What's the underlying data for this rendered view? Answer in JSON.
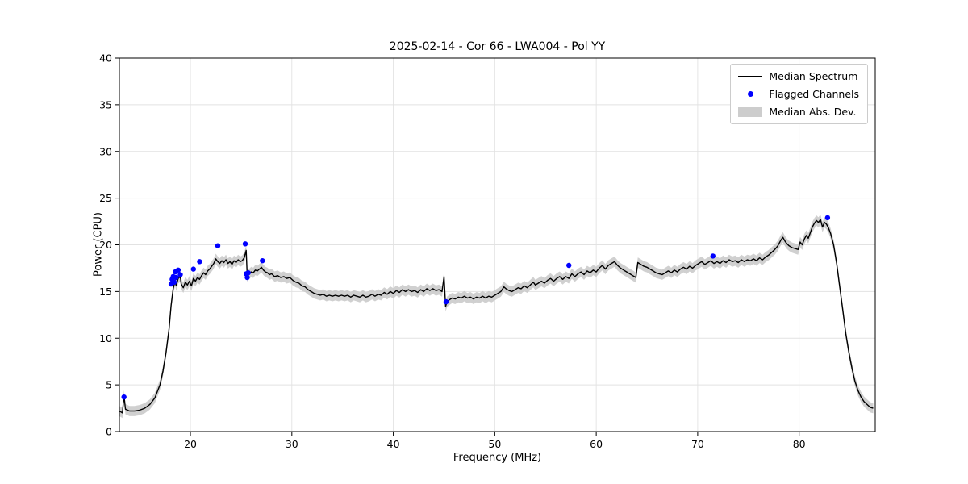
{
  "chart_data": {
    "type": "line",
    "title": "2025-02-14 - Cor 66 - LWA004 - Pol YY",
    "xlabel": "Frequency (MHz)",
    "ylabel": "Power (CPU)",
    "xlim": [
      13,
      87.5
    ],
    "ylim": [
      0,
      40
    ],
    "xticks": [
      20,
      30,
      40,
      50,
      60,
      70,
      80
    ],
    "yticks": [
      0,
      5,
      10,
      15,
      20,
      25,
      30,
      35,
      40
    ],
    "grid": true,
    "legend_position": "upper right",
    "line_color": "#000000",
    "flag_color": "#0000ff",
    "band_color": "#c8c8c8",
    "mad_halfwidth": 0.55,
    "legend": [
      {
        "label": "Median Spectrum",
        "type": "line"
      },
      {
        "label": "Flagged Channels",
        "type": "dot"
      },
      {
        "label": "Median Abs. Dev.",
        "type": "band"
      }
    ],
    "median_spectrum": [
      [
        13.0,
        2.2
      ],
      [
        13.3,
        2.0
      ],
      [
        13.45,
        3.9
      ],
      [
        13.6,
        2.4
      ],
      [
        14.0,
        2.2
      ],
      [
        14.5,
        2.2
      ],
      [
        15.0,
        2.3
      ],
      [
        15.5,
        2.5
      ],
      [
        16.0,
        2.9
      ],
      [
        16.5,
        3.6
      ],
      [
        17.0,
        5.0
      ],
      [
        17.3,
        6.5
      ],
      [
        17.6,
        8.5
      ],
      [
        17.9,
        11.0
      ],
      [
        18.1,
        13.5
      ],
      [
        18.3,
        15.3
      ],
      [
        18.5,
        16.2
      ],
      [
        18.6,
        15.6
      ],
      [
        18.8,
        16.4
      ],
      [
        19.0,
        16.6
      ],
      [
        19.1,
        15.8
      ],
      [
        19.3,
        15.4
      ],
      [
        19.5,
        16.0
      ],
      [
        19.7,
        15.7
      ],
      [
        19.9,
        16.1
      ],
      [
        20.1,
        15.6
      ],
      [
        20.3,
        16.4
      ],
      [
        20.5,
        16.1
      ],
      [
        20.7,
        16.5
      ],
      [
        20.9,
        16.3
      ],
      [
        21.1,
        16.7
      ],
      [
        21.3,
        17.0
      ],
      [
        21.5,
        16.8
      ],
      [
        21.7,
        17.2
      ],
      [
        21.9,
        17.4
      ],
      [
        22.1,
        17.7
      ],
      [
        22.3,
        18.0
      ],
      [
        22.5,
        18.5
      ],
      [
        22.7,
        18.2
      ],
      [
        22.9,
        18.0
      ],
      [
        23.1,
        18.3
      ],
      [
        23.3,
        18.1
      ],
      [
        23.5,
        18.4
      ],
      [
        23.7,
        18.0
      ],
      [
        23.9,
        18.2
      ],
      [
        24.1,
        17.9
      ],
      [
        24.3,
        18.3
      ],
      [
        24.5,
        18.1
      ],
      [
        24.7,
        18.4
      ],
      [
        24.9,
        18.2
      ],
      [
        25.1,
        18.3
      ],
      [
        25.3,
        18.6
      ],
      [
        25.5,
        19.4
      ],
      [
        25.6,
        16.6
      ],
      [
        25.8,
        16.9
      ],
      [
        26.0,
        17.1
      ],
      [
        26.2,
        17.0
      ],
      [
        26.4,
        17.3
      ],
      [
        26.6,
        17.2
      ],
      [
        26.8,
        17.4
      ],
      [
        27.0,
        17.6
      ],
      [
        27.2,
        17.3
      ],
      [
        27.4,
        17.1
      ],
      [
        27.6,
        17.0
      ],
      [
        27.8,
        16.8
      ],
      [
        28.0,
        16.9
      ],
      [
        28.3,
        16.6
      ],
      [
        28.6,
        16.7
      ],
      [
        28.9,
        16.5
      ],
      [
        29.2,
        16.6
      ],
      [
        29.5,
        16.4
      ],
      [
        29.8,
        16.5
      ],
      [
        30.1,
        16.2
      ],
      [
        30.4,
        16.0
      ],
      [
        30.7,
        15.9
      ],
      [
        31.0,
        15.6
      ],
      [
        31.3,
        15.5
      ],
      [
        31.6,
        15.2
      ],
      [
        31.9,
        15.0
      ],
      [
        32.2,
        14.8
      ],
      [
        32.5,
        14.7
      ],
      [
        32.8,
        14.6
      ],
      [
        33.1,
        14.7
      ],
      [
        33.4,
        14.5
      ],
      [
        33.7,
        14.6
      ],
      [
        34.0,
        14.5
      ],
      [
        34.3,
        14.6
      ],
      [
        34.6,
        14.5
      ],
      [
        34.9,
        14.6
      ],
      [
        35.2,
        14.5
      ],
      [
        35.5,
        14.6
      ],
      [
        35.8,
        14.4
      ],
      [
        36.1,
        14.6
      ],
      [
        36.4,
        14.5
      ],
      [
        36.7,
        14.4
      ],
      [
        37.0,
        14.6
      ],
      [
        37.3,
        14.4
      ],
      [
        37.6,
        14.5
      ],
      [
        37.9,
        14.7
      ],
      [
        38.2,
        14.5
      ],
      [
        38.5,
        14.7
      ],
      [
        38.8,
        14.6
      ],
      [
        39.1,
        14.9
      ],
      [
        39.4,
        14.7
      ],
      [
        39.7,
        15.0
      ],
      [
        40.0,
        14.8
      ],
      [
        40.3,
        15.1
      ],
      [
        40.6,
        14.9
      ],
      [
        40.9,
        15.2
      ],
      [
        41.2,
        15.0
      ],
      [
        41.5,
        15.2
      ],
      [
        41.8,
        15.0
      ],
      [
        42.1,
        15.1
      ],
      [
        42.4,
        14.9
      ],
      [
        42.7,
        15.2
      ],
      [
        43.0,
        15.0
      ],
      [
        43.3,
        15.3
      ],
      [
        43.6,
        15.1
      ],
      [
        43.9,
        15.3
      ],
      [
        44.2,
        15.1
      ],
      [
        44.5,
        15.2
      ],
      [
        44.8,
        15.0
      ],
      [
        45.0,
        16.6
      ],
      [
        45.15,
        13.4
      ],
      [
        45.3,
        13.9
      ],
      [
        45.5,
        14.1
      ],
      [
        45.8,
        14.3
      ],
      [
        46.1,
        14.2
      ],
      [
        46.4,
        14.4
      ],
      [
        46.7,
        14.3
      ],
      [
        47.0,
        14.5
      ],
      [
        47.3,
        14.3
      ],
      [
        47.6,
        14.4
      ],
      [
        47.9,
        14.2
      ],
      [
        48.2,
        14.4
      ],
      [
        48.5,
        14.3
      ],
      [
        48.8,
        14.5
      ],
      [
        49.1,
        14.3
      ],
      [
        49.4,
        14.5
      ],
      [
        49.7,
        14.4
      ],
      [
        50.0,
        14.6
      ],
      [
        50.3,
        14.8
      ],
      [
        50.6,
        15.0
      ],
      [
        50.9,
        15.5
      ],
      [
        51.1,
        15.3
      ],
      [
        51.4,
        15.1
      ],
      [
        51.7,
        15.0
      ],
      [
        52.0,
        15.2
      ],
      [
        52.3,
        15.4
      ],
      [
        52.6,
        15.3
      ],
      [
        52.9,
        15.6
      ],
      [
        53.2,
        15.4
      ],
      [
        53.5,
        15.7
      ],
      [
        53.8,
        16.0
      ],
      [
        54.0,
        15.7
      ],
      [
        54.3,
        15.9
      ],
      [
        54.6,
        16.1
      ],
      [
        54.9,
        15.9
      ],
      [
        55.2,
        16.2
      ],
      [
        55.5,
        16.4
      ],
      [
        55.8,
        16.1
      ],
      [
        56.1,
        16.4
      ],
      [
        56.4,
        16.6
      ],
      [
        56.7,
        16.3
      ],
      [
        57.0,
        16.6
      ],
      [
        57.3,
        16.4
      ],
      [
        57.6,
        16.9
      ],
      [
        57.9,
        16.6
      ],
      [
        58.2,
        16.9
      ],
      [
        58.5,
        17.1
      ],
      [
        58.8,
        16.8
      ],
      [
        59.1,
        17.2
      ],
      [
        59.4,
        17.0
      ],
      [
        59.7,
        17.3
      ],
      [
        60.0,
        17.1
      ],
      [
        60.3,
        17.5
      ],
      [
        60.6,
        17.8
      ],
      [
        60.9,
        17.4
      ],
      [
        61.2,
        17.8
      ],
      [
        61.5,
        18.0
      ],
      [
        61.8,
        18.2
      ],
      [
        62.1,
        17.8
      ],
      [
        62.4,
        17.5
      ],
      [
        62.7,
        17.3
      ],
      [
        63.0,
        17.1
      ],
      [
        63.3,
        16.9
      ],
      [
        63.6,
        16.7
      ],
      [
        63.9,
        16.5
      ],
      [
        64.1,
        18.1
      ],
      [
        64.4,
        17.9
      ],
      [
        64.7,
        17.7
      ],
      [
        65.0,
        17.6
      ],
      [
        65.3,
        17.4
      ],
      [
        65.6,
        17.2
      ],
      [
        65.9,
        17.0
      ],
      [
        66.2,
        16.9
      ],
      [
        66.5,
        16.8
      ],
      [
        66.8,
        17.0
      ],
      [
        67.1,
        17.2
      ],
      [
        67.4,
        17.0
      ],
      [
        67.7,
        17.3
      ],
      [
        68.0,
        17.1
      ],
      [
        68.3,
        17.4
      ],
      [
        68.6,
        17.6
      ],
      [
        68.9,
        17.4
      ],
      [
        69.2,
        17.7
      ],
      [
        69.5,
        17.5
      ],
      [
        69.8,
        17.8
      ],
      [
        70.1,
        18.0
      ],
      [
        70.4,
        18.2
      ],
      [
        70.7,
        17.9
      ],
      [
        71.0,
        18.1
      ],
      [
        71.3,
        18.3
      ],
      [
        71.6,
        18.0
      ],
      [
        71.9,
        18.2
      ],
      [
        72.2,
        18.0
      ],
      [
        72.5,
        18.3
      ],
      [
        72.8,
        18.1
      ],
      [
        73.1,
        18.4
      ],
      [
        73.4,
        18.2
      ],
      [
        73.7,
        18.3
      ],
      [
        74.0,
        18.1
      ],
      [
        74.3,
        18.4
      ],
      [
        74.6,
        18.2
      ],
      [
        74.9,
        18.4
      ],
      [
        75.2,
        18.3
      ],
      [
        75.5,
        18.5
      ],
      [
        75.8,
        18.3
      ],
      [
        76.1,
        18.6
      ],
      [
        76.4,
        18.4
      ],
      [
        76.7,
        18.7
      ],
      [
        77.0,
        18.9
      ],
      [
        77.3,
        19.2
      ],
      [
        77.6,
        19.5
      ],
      [
        77.9,
        19.9
      ],
      [
        78.2,
        20.5
      ],
      [
        78.4,
        20.8
      ],
      [
        78.6,
        20.4
      ],
      [
        78.8,
        20.1
      ],
      [
        79.0,
        19.9
      ],
      [
        79.3,
        19.7
      ],
      [
        79.6,
        19.6
      ],
      [
        79.9,
        19.5
      ],
      [
        80.1,
        20.3
      ],
      [
        80.3,
        20.0
      ],
      [
        80.5,
        20.6
      ],
      [
        80.7,
        21.0
      ],
      [
        80.9,
        20.7
      ],
      [
        81.1,
        21.3
      ],
      [
        81.3,
        21.9
      ],
      [
        81.5,
        22.3
      ],
      [
        81.7,
        22.6
      ],
      [
        81.9,
        22.4
      ],
      [
        82.1,
        22.7
      ],
      [
        82.3,
        21.9
      ],
      [
        82.5,
        22.4
      ],
      [
        82.7,
        22.2
      ],
      [
        82.9,
        21.8
      ],
      [
        83.1,
        21.2
      ],
      [
        83.4,
        20.0
      ],
      [
        83.7,
        18.0
      ],
      [
        84.0,
        15.5
      ],
      [
        84.3,
        13.0
      ],
      [
        84.6,
        10.5
      ],
      [
        84.9,
        8.5
      ],
      [
        85.2,
        6.8
      ],
      [
        85.5,
        5.4
      ],
      [
        85.8,
        4.4
      ],
      [
        86.1,
        3.7
      ],
      [
        86.4,
        3.2
      ],
      [
        86.7,
        2.9
      ],
      [
        87.0,
        2.6
      ],
      [
        87.3,
        2.5
      ]
    ],
    "flagged_channels": [
      [
        13.45,
        3.7
      ],
      [
        18.1,
        15.8
      ],
      [
        18.2,
        16.3
      ],
      [
        18.3,
        16.6
      ],
      [
        18.4,
        16.0
      ],
      [
        18.5,
        17.1
      ],
      [
        18.6,
        16.5
      ],
      [
        18.8,
        17.3
      ],
      [
        19.0,
        16.8
      ],
      [
        20.3,
        17.4
      ],
      [
        20.9,
        18.2
      ],
      [
        22.7,
        19.9
      ],
      [
        25.4,
        20.1
      ],
      [
        25.5,
        16.9
      ],
      [
        25.6,
        16.5
      ],
      [
        25.7,
        17.0
      ],
      [
        27.1,
        18.3
      ],
      [
        45.2,
        13.9
      ],
      [
        57.3,
        17.8
      ],
      [
        71.5,
        18.8
      ],
      [
        82.8,
        22.9
      ]
    ]
  }
}
